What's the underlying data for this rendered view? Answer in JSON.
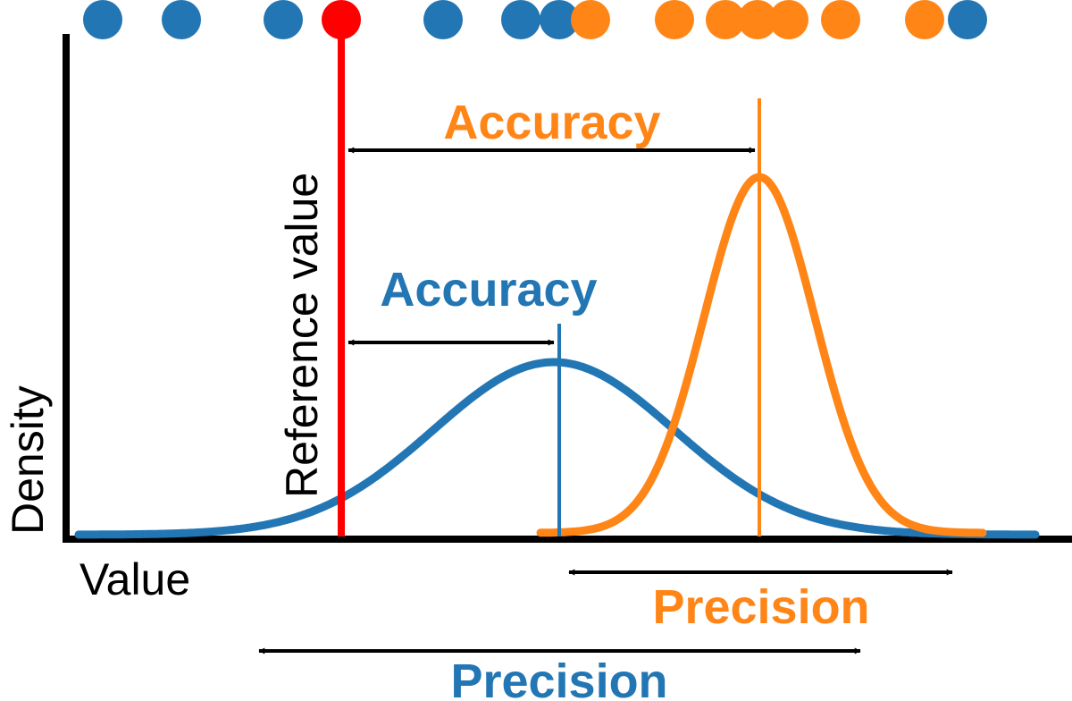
{
  "axes": {
    "ylabel": "Density",
    "xlabel": "Value"
  },
  "reference": {
    "label": "Reference value",
    "color": "#ff0000"
  },
  "series": [
    {
      "id": "blue",
      "color": "#2276b4",
      "accuracy_label": "Accuracy",
      "precision_label": "Precision"
    },
    {
      "id": "orange",
      "color": "#ff8517",
      "accuracy_label": "Accuracy",
      "precision_label": "Precision"
    }
  ]
}
